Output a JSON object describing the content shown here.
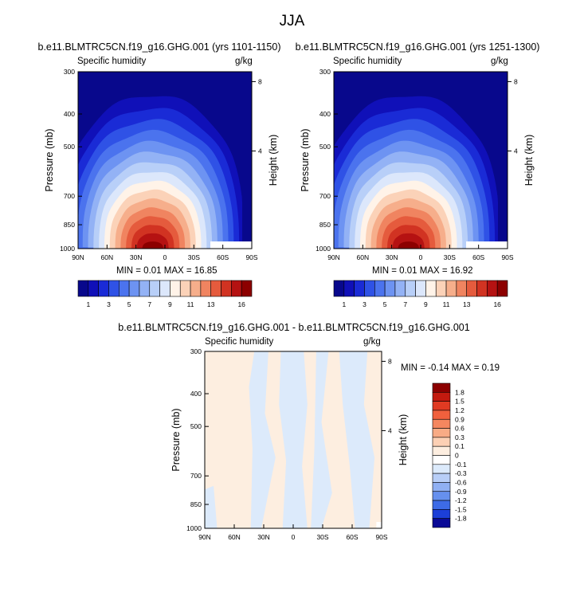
{
  "main_title": "JJA",
  "panels": [
    {
      "title": "b.e11.BLMTRC5CN.f19_g16.GHG.001 (yrs 1101-1150)",
      "left_string": "Specific humidity",
      "right_string": "g/kg",
      "minmax": "MIN =  0.01  MAX = 16.85"
    },
    {
      "title": "b.e11.BLMTRC5CN.f19_g16.GHG.001 (yrs 1251-1300)",
      "left_string": "Specific humidity",
      "right_string": "g/kg",
      "minmax": "MIN =  0.01  MAX = 16.92"
    },
    {
      "title": "b.e11.BLMTRC5CN.f19_g16.GHG.001 - b.e11.BLMTRC5CN.f19_g16.GHG.001",
      "left_string": "Specific humidity",
      "right_string": "g/kg",
      "minmax": "MIN = -0.14  MAX =  0.19"
    }
  ],
  "axes": {
    "ylabel": "Pressure (mb)",
    "ylabel_right": "Height (km)",
    "pressure_ticks": [
      "300",
      "400",
      "500",
      "700",
      "850",
      "1000"
    ],
    "height_ticks": [
      "8",
      "4"
    ],
    "lat_ticks": [
      "90N",
      "60N",
      "30N",
      "0",
      "30S",
      "60S",
      "90S"
    ]
  },
  "colorbar_top": {
    "labels": [
      "1",
      "3",
      "5",
      "7",
      "9",
      "11",
      "13",
      "16"
    ],
    "colors": [
      "#08088c",
      "#1010b8",
      "#1a2bd6",
      "#2f52e6",
      "#4b73ee",
      "#6d93f2",
      "#93b2f5",
      "#b8cff8",
      "#dce7fb",
      "#fff3e8",
      "#fbd2b8",
      "#f6ae8b",
      "#f08460",
      "#e55b3d",
      "#d13322",
      "#b51212",
      "#8c0000"
    ]
  },
  "colorbar_diff": {
    "labels": [
      "1.8",
      "1.5",
      "1.2",
      "0.9",
      "0.6",
      "0.3",
      "0.1",
      "0",
      "-0.1",
      "-0.3",
      "-0.6",
      "-0.9",
      "-1.2",
      "-1.5",
      "-1.8"
    ],
    "colors": [
      "#8c0000",
      "#c31a0f",
      "#e03a22",
      "#f0603d",
      "#f5875f",
      "#f8ab85",
      "#fcd0b4",
      "#fdeee0",
      "#ffffff",
      "#dceafb",
      "#b8cef7",
      "#90b0f3",
      "#6690ee",
      "#3d6be6",
      "#1c3fd8",
      "#0a0a96"
    ]
  },
  "chart_data": [
    {
      "type": "heatmap",
      "title": "b.e11.BLMTRC5CN.f19_g16.GHG.001 (yrs 1101-1150)",
      "variable": "Specific humidity",
      "units": "g/kg",
      "season": "JJA",
      "x_range": [
        "90N",
        "90S"
      ],
      "y_range_mb": [
        300,
        1000
      ],
      "contour_levels": [
        1,
        2,
        3,
        4,
        5,
        6,
        7,
        8,
        9,
        10,
        11,
        12,
        13,
        14,
        15,
        16
      ],
      "min": 0.01,
      "max": 16.85,
      "max_location": {
        "lat": "10N",
        "pressure_mb": 1000
      }
    },
    {
      "type": "heatmap",
      "title": "b.e11.BLMTRC5CN.f19_g16.GHG.001 (yrs 1251-1300)",
      "variable": "Specific humidity",
      "units": "g/kg",
      "season": "JJA",
      "x_range": [
        "90N",
        "90S"
      ],
      "y_range_mb": [
        300,
        1000
      ],
      "contour_levels": [
        1,
        2,
        3,
        4,
        5,
        6,
        7,
        8,
        9,
        10,
        11,
        12,
        13,
        14,
        15,
        16
      ],
      "min": 0.01,
      "max": 16.92,
      "max_location": {
        "lat": "10N",
        "pressure_mb": 1000
      }
    },
    {
      "type": "heatmap",
      "title": "b.e11.BLMTRC5CN.f19_g16.GHG.001 - b.e11.BLMTRC5CN.f19_g16.GHG.001",
      "variable": "Specific humidity",
      "units": "g/kg",
      "season": "JJA",
      "x_range": [
        "90N",
        "90S"
      ],
      "y_range_mb": [
        300,
        1000
      ],
      "contour_levels": [
        -1.8,
        -1.5,
        -1.2,
        -0.9,
        -0.6,
        -0.3,
        -0.1,
        0,
        0.1,
        0.3,
        0.6,
        0.9,
        1.2,
        1.5,
        1.8
      ],
      "min": -0.14,
      "max": 0.19
    }
  ]
}
